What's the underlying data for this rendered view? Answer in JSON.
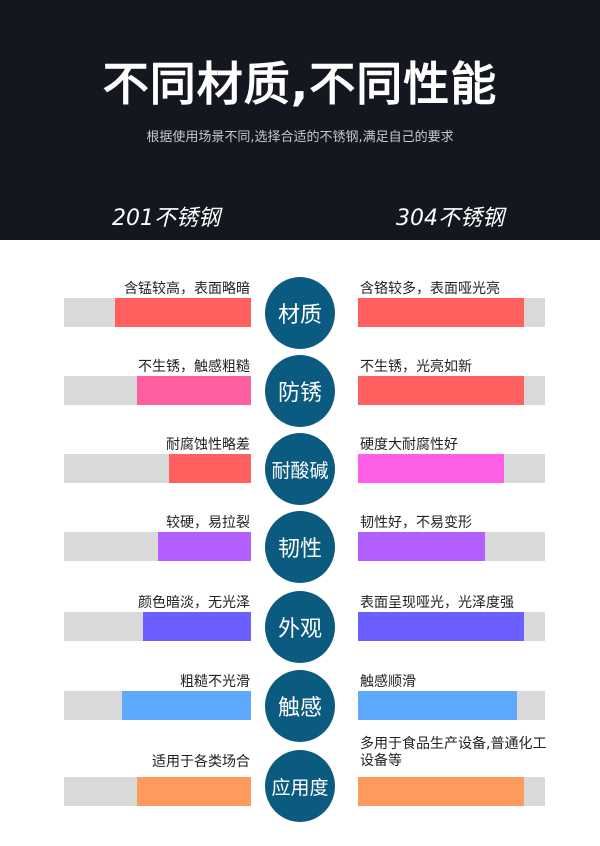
{
  "header": {
    "title": "不同材质,不同性能",
    "subtitle": "根据使用场景不同,选择合适的不锈钢,满足自己的要求",
    "left_heading": "201不锈钢",
    "right_heading": "304不锈钢"
  },
  "rows": [
    {
      "name": "材质",
      "left_text": "含锰较高，表面略暗",
      "right_text": "含铬较多，表面哑光亮",
      "left_level": 0.73,
      "right_level": 0.89,
      "left_color": "#ff5f5f",
      "right_color": "#ff5f5f"
    },
    {
      "name": "防锈",
      "left_text": "不生锈，触感粗糙",
      "right_text": "不生锈，光亮如新",
      "left_level": 0.61,
      "right_level": 0.89,
      "left_color": "#ff5fa0",
      "right_color": "#ff5f5f"
    },
    {
      "name": "耐酸碱",
      "left_text": "耐腐蚀性略差",
      "right_text": "硬度大耐腐性好",
      "left_level": 0.44,
      "right_level": 0.78,
      "left_color": "#ff5f5f",
      "right_color": "#ff5fe6"
    },
    {
      "name": "韧性",
      "left_text": "较硬，易拉裂",
      "right_text": "韧性好，不易变形",
      "left_level": 0.5,
      "right_level": 0.68,
      "left_color": "#b35fff",
      "right_color": "#b35fff"
    },
    {
      "name": "外观",
      "left_text": "颜色暗淡，无光泽",
      "right_text": "表面呈现哑光，光泽度强",
      "left_level": 0.58,
      "right_level": 0.89,
      "left_color": "#6c5fff",
      "right_color": "#6c5fff"
    },
    {
      "name": "触感",
      "left_text": "粗糙不光滑",
      "right_text": "触感顺滑",
      "left_level": 0.69,
      "right_level": 0.85,
      "left_color": "#5fa8ff",
      "right_color": "#5fa8ff"
    },
    {
      "name": "应用度",
      "left_text": "适用于各类场合",
      "right_text": "多用于食品生产设备,普通化工设备等",
      "left_level": 0.61,
      "right_level": 0.89,
      "left_color": "#ff9a5f",
      "right_color": "#ff9a5f"
    }
  ],
  "colors": {
    "header_bg": "#151720",
    "circle": "#0b5a80",
    "track": "#d9d9d9"
  }
}
